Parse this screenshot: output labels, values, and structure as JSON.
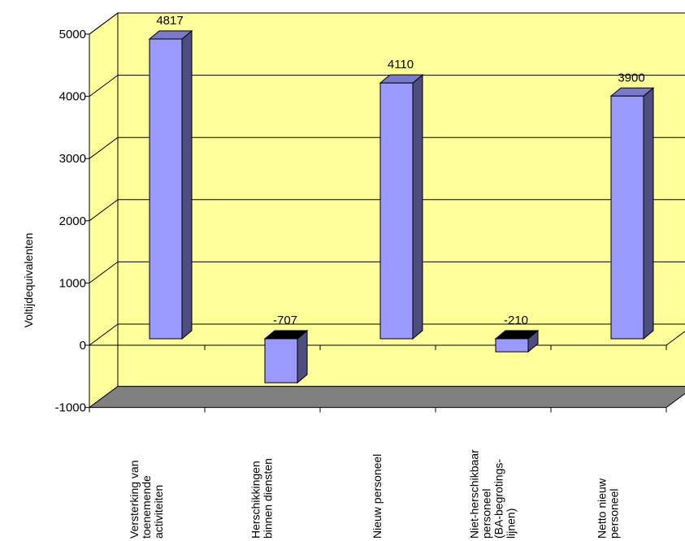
{
  "chart_data": {
    "type": "bar",
    "style": "3d-column",
    "categories": [
      [
        "Versterking van",
        "toenemende",
        "activiteiten"
      ],
      [
        "Herschikkingen",
        "binnen diensten"
      ],
      [
        "Nieuw personeel"
      ],
      [
        "Niet-herschikbaar",
        "personeel",
        "(BA-begrotings-",
        "lijnen)"
      ],
      [
        "Netto nieuw",
        "personeel"
      ]
    ],
    "values": [
      4817,
      -707,
      4110,
      -210,
      3900
    ],
    "data_labels": [
      "4817",
      "-707",
      "4110",
      "-210",
      "3900"
    ],
    "ylabel": "Voltijdequivalenten",
    "ylim": [
      -1000,
      5000
    ],
    "yticks": [
      -1000,
      0,
      1000,
      2000,
      3000,
      4000,
      5000
    ],
    "ytick_labels": [
      "-1000",
      "0",
      "1000",
      "2000",
      "3000",
      "4000",
      "5000"
    ],
    "grid": true,
    "colors": {
      "bar_front": "#9999FF",
      "bar_side": "#4D4D80",
      "bar_top": "#7A7ACC",
      "wall": "#FFFF99",
      "floor": "#808080"
    }
  }
}
